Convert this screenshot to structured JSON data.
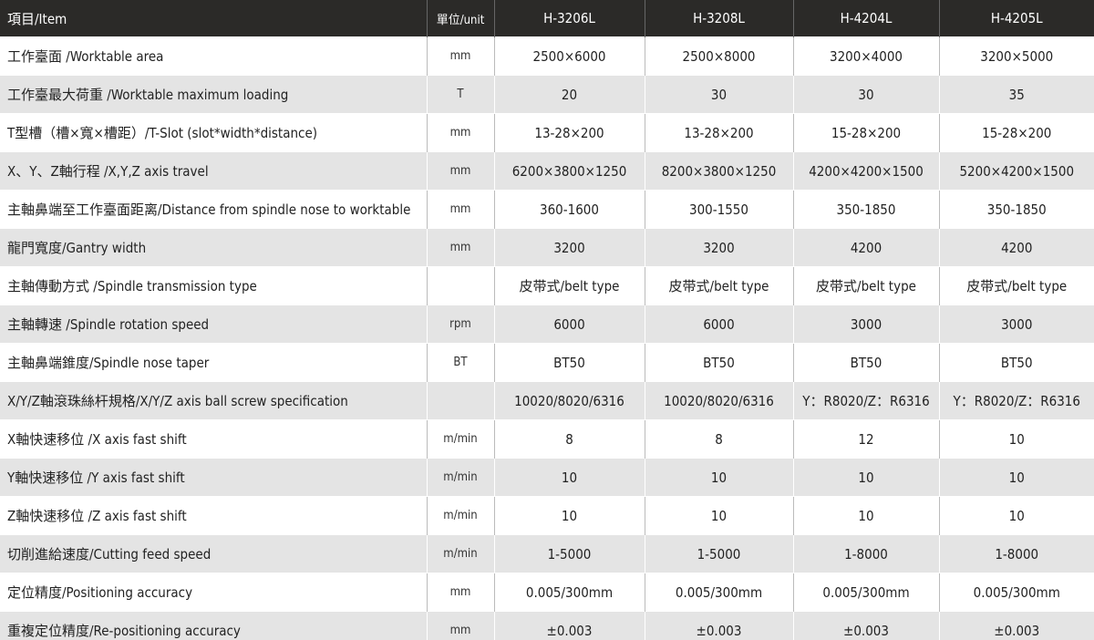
{
  "header": {
    "item": "項目/Item",
    "unit": "單位/unit",
    "models": [
      "H-3206L",
      "H-3208L",
      "H-4204L",
      "H-4205L"
    ]
  },
  "rows": [
    {
      "item": "工作臺面 /Worktable area",
      "unit": "mm",
      "values": [
        "2500×6000",
        "2500×8000",
        "3200×4000",
        "3200×5000"
      ]
    },
    {
      "item": "工作臺最大荷重 /Worktable maximum loading",
      "unit": "T",
      "values": [
        "20",
        "30",
        "30",
        "35"
      ]
    },
    {
      "item": "T型槽（槽×寬×槽距）/T-Slot (slot*width*distance)",
      "unit": "mm",
      "values": [
        "13-28×200",
        "13-28×200",
        "15-28×200",
        "15-28×200"
      ]
    },
    {
      "item": "X、Y、Z軸行程 /X,Y,Z axis travel",
      "unit": "mm",
      "values": [
        "6200×3800×1250",
        "8200×3800×1250",
        "4200×4200×1500",
        "5200×4200×1500"
      ]
    },
    {
      "item": "主軸鼻端至工作臺面距离/Distance from spindle nose to worktable",
      "unit": "mm",
      "values": [
        "360-1600",
        "300-1550",
        "350-1850",
        "350-1850"
      ]
    },
    {
      "item": "龍門寬度/Gantry width",
      "unit": "mm",
      "values": [
        "3200",
        "3200",
        "4200",
        "4200"
      ]
    },
    {
      "item": "主軸傳動方式 /Spindle transmission type",
      "values": [
        "皮带式/belt type",
        "皮带式/belt type",
        "皮带式/belt type",
        "皮带式/belt type"
      ]
    },
    {
      "item": "主軸轉速 /Spindle rotation speed",
      "unit": "rpm",
      "values": [
        "6000",
        "6000",
        "3000",
        "3000"
      ]
    },
    {
      "item": "主軸鼻端錐度/Spindle nose taper",
      "unit": "BT",
      "values": [
        "BT50",
        "BT50",
        "BT50",
        "BT50"
      ]
    },
    {
      "item": "X/Y/Z軸滾珠絲杆規格/X/Y/Z axis ball screw specification",
      "values": [
        "10020/8020/6316",
        "10020/8020/6316",
        "Y：R8020/Z：R6316",
        "Y：R8020/Z：R6316"
      ]
    },
    {
      "item": "X軸快速移位 /X axis fast shift",
      "unit": "m/min",
      "values": [
        "8",
        "8",
        "12",
        "10"
      ]
    },
    {
      "item": "Y軸快速移位 /Y axis fast shift",
      "unit": "m/min",
      "values": [
        "10",
        "10",
        "10",
        "10"
      ]
    },
    {
      "item": "Z軸快速移位 /Z axis fast shift",
      "unit": "m/min",
      "values": [
        "10",
        "10",
        "10",
        "10"
      ]
    },
    {
      "item": "切削進給速度/Cutting feed speed",
      "unit": "m/min",
      "values": [
        "1-5000",
        "1-5000",
        "1-8000",
        "1-8000"
      ]
    },
    {
      "item": "定位精度/Positioning accuracy",
      "unit": "mm",
      "values": [
        "0.005/300mm",
        "0.005/300mm",
        "0.005/300mm",
        "0.005/300mm"
      ]
    },
    {
      "item": "重複定位精度/Re-positioning accuracy",
      "unit": "mm",
      "values": [
        "±0.003",
        "±0.003",
        "±0.003",
        "±0.003"
      ]
    }
  ]
}
